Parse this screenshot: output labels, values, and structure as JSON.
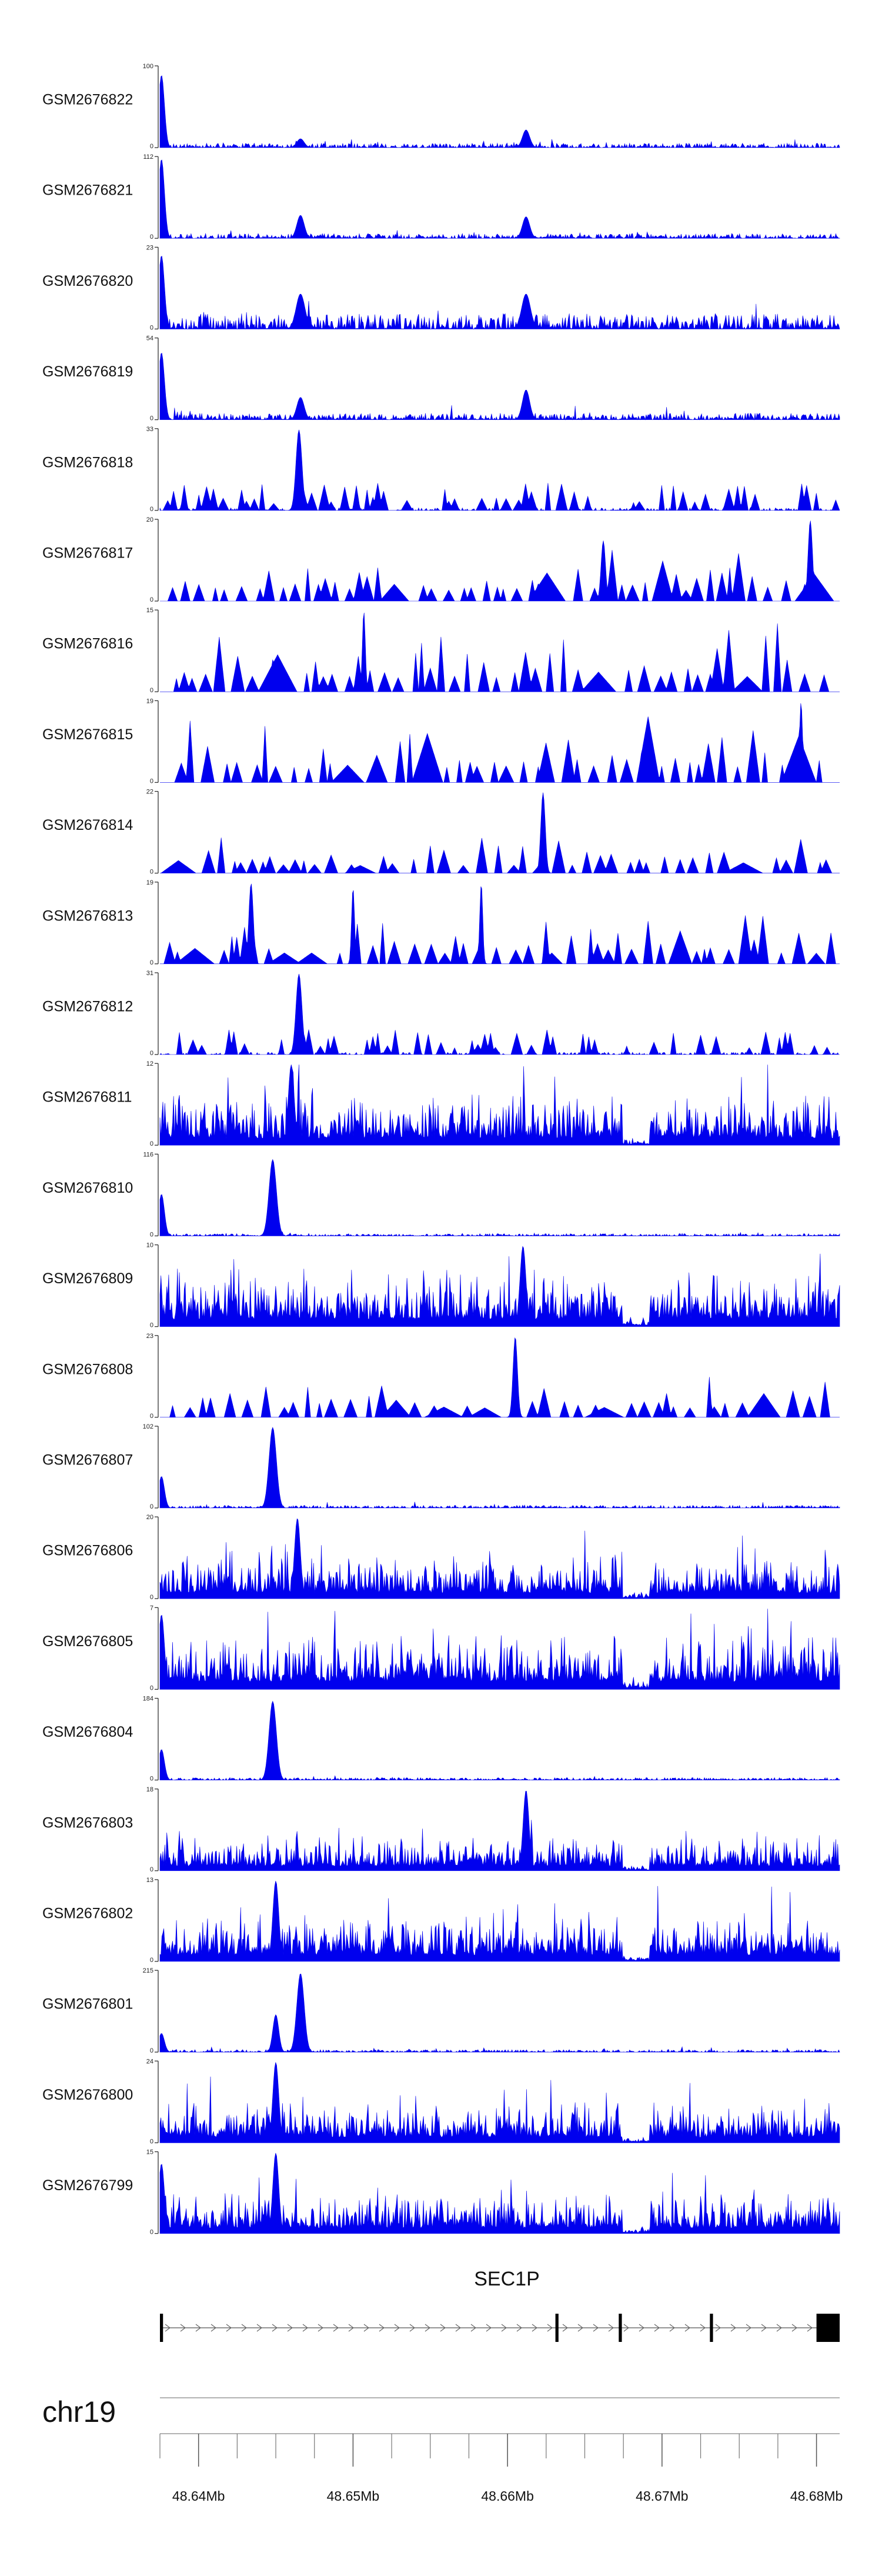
{
  "chart_data": {
    "type": "area",
    "title": "",
    "chromosome": "chr19",
    "xlim": [
      48.6375,
      48.6815
    ],
    "x_ticks": [
      "48.64Mb",
      "48.65Mb",
      "48.66Mb",
      "48.67Mb",
      "48.68Mb"
    ],
    "x_tick_values": [
      48.64,
      48.65,
      48.66,
      48.67,
      48.68
    ],
    "gene": {
      "name": "SEC1P",
      "start": 48.6375,
      "end": 48.6815,
      "strand": "+",
      "exons": [
        [
          48.6375,
          48.6377
        ],
        [
          48.6631,
          48.6633
        ],
        [
          48.6672,
          48.6674
        ],
        [
          48.6731,
          48.6733
        ],
        [
          48.68,
          48.6815
        ]
      ]
    },
    "tracks": [
      {
        "name": "GSM2676822",
        "ymin": "0",
        "ymax": "100",
        "max": 100,
        "style": "dense",
        "base": 2.5,
        "peaks": [
          [
            48.6376,
            90,
            0.0004
          ],
          [
            48.6466,
            11,
            0.0005
          ],
          [
            48.6612,
            22,
            0.0005
          ]
        ]
      },
      {
        "name": "GSM2676821",
        "ymin": "0",
        "ymax": "112",
        "max": 112,
        "style": "dense",
        "base": 3,
        "peaks": [
          [
            48.6376,
            110,
            0.0004
          ],
          [
            48.6466,
            32,
            0.0005
          ],
          [
            48.6612,
            30,
            0.0005
          ]
        ]
      },
      {
        "name": "GSM2676820",
        "ymin": "0",
        "ymax": "23",
        "max": 23,
        "style": "dense",
        "base": 2,
        "peaks": [
          [
            48.6376,
            21,
            0.0004
          ],
          [
            48.6466,
            10,
            0.0006
          ],
          [
            48.6612,
            10,
            0.0006
          ]
        ]
      },
      {
        "name": "GSM2676819",
        "ymin": "0",
        "ymax": "54",
        "max": 54,
        "style": "dense",
        "base": 2,
        "peaks": [
          [
            48.6376,
            45,
            0.0004
          ],
          [
            48.6466,
            15,
            0.0005
          ],
          [
            48.6612,
            20,
            0.0005
          ]
        ]
      },
      {
        "name": "GSM2676818",
        "ymin": "0",
        "ymax": "33",
        "max": 33,
        "style": "spiky",
        "base": 7,
        "peaks": [
          [
            48.6465,
            33,
            0.0004
          ]
        ]
      },
      {
        "name": "GSM2676817",
        "ymin": "0",
        "ymax": "20",
        "max": 20,
        "style": "sparse",
        "base": 9,
        "peaks": [
          [
            48.6662,
            15,
            0.0003
          ],
          [
            48.6796,
            20,
            0.0003
          ]
        ]
      },
      {
        "name": "GSM2676816",
        "ymin": "0",
        "ymax": "15",
        "max": 15,
        "style": "sparse",
        "base": 8,
        "peaks": [
          [
            48.6507,
            15,
            0.0002
          ]
        ]
      },
      {
        "name": "GSM2676815",
        "ymin": "0",
        "ymax": "19",
        "max": 19,
        "style": "sparse",
        "base": 11,
        "peaks": [
          [
            48.679,
            19,
            0.0002
          ]
        ]
      },
      {
        "name": "GSM2676814",
        "ymin": "0",
        "ymax": "22",
        "max": 22,
        "style": "sparse",
        "base": 7,
        "peaks": [
          [
            48.6623,
            22,
            0.0003
          ]
        ]
      },
      {
        "name": "GSM2676813",
        "ymin": "0",
        "ymax": "19",
        "max": 19,
        "style": "sparse",
        "base": 8,
        "peaks": [
          [
            48.6434,
            19,
            0.0003
          ],
          [
            48.65,
            18,
            0.0002
          ],
          [
            48.6583,
            19,
            0.0002
          ]
        ]
      },
      {
        "name": "GSM2676812",
        "ymin": "0",
        "ymax": "31",
        "max": 31,
        "style": "spiky",
        "base": 6,
        "peaks": [
          [
            48.6465,
            31,
            0.0004
          ]
        ]
      },
      {
        "name": "GSM2676811",
        "ymin": "0",
        "ymax": "12",
        "max": 12,
        "style": "noisy",
        "base": 5,
        "peaks": [
          [
            48.646,
            12,
            0.0004
          ]
        ]
      },
      {
        "name": "GSM2676810",
        "ymin": "0",
        "ymax": "116",
        "max": 116,
        "style": "dense",
        "base": 1.5,
        "peaks": [
          [
            48.6376,
            60,
            0.0004
          ],
          [
            48.6448,
            110,
            0.0005
          ]
        ]
      },
      {
        "name": "GSM2676809",
        "ymin": "0",
        "ymax": "10",
        "max": 10,
        "style": "noisy",
        "base": 4.5,
        "peaks": [
          [
            48.661,
            10,
            0.0004
          ]
        ]
      },
      {
        "name": "GSM2676808",
        "ymin": "0",
        "ymax": "23",
        "max": 23,
        "style": "sparse",
        "base": 9,
        "peaks": [
          [
            48.6605,
            23,
            0.0003
          ]
        ]
      },
      {
        "name": "GSM2676807",
        "ymin": "0",
        "ymax": "102",
        "max": 102,
        "style": "dense",
        "base": 1.5,
        "peaks": [
          [
            48.6376,
            40,
            0.0004
          ],
          [
            48.6448,
            102,
            0.0005
          ]
        ]
      },
      {
        "name": "GSM2676806",
        "ymin": "0",
        "ymax": "20",
        "max": 20,
        "style": "noisy",
        "base": 7,
        "peaks": [
          [
            48.6464,
            20,
            0.0004
          ]
        ]
      },
      {
        "name": "GSM2676805",
        "ymin": "0",
        "ymax": "7",
        "max": 7,
        "style": "noisy",
        "base": 3.3,
        "peaks": [
          [
            48.6376,
            6.5,
            0.0004
          ]
        ]
      },
      {
        "name": "GSM2676804",
        "ymin": "0",
        "ymax": "184",
        "max": 184,
        "style": "dense",
        "base": 2.5,
        "peaks": [
          [
            48.6376,
            70,
            0.0004
          ],
          [
            48.6448,
            180,
            0.0005
          ]
        ]
      },
      {
        "name": "GSM2676803",
        "ymin": "0",
        "ymax": "18",
        "max": 18,
        "style": "noisy",
        "base": 5,
        "peaks": [
          [
            48.6612,
            18,
            0.0004
          ]
        ]
      },
      {
        "name": "GSM2676802",
        "ymin": "0",
        "ymax": "13",
        "max": 13,
        "style": "noisy",
        "base": 5,
        "peaks": [
          [
            48.645,
            13,
            0.0004
          ]
        ]
      },
      {
        "name": "GSM2676801",
        "ymin": "0",
        "ymax": "215",
        "max": 215,
        "style": "dense",
        "base": 3,
        "peaks": [
          [
            48.6376,
            50,
            0.0004
          ],
          [
            48.645,
            100,
            0.0004
          ],
          [
            48.6466,
            210,
            0.0005
          ]
        ]
      },
      {
        "name": "GSM2676800",
        "ymin": "0",
        "ymax": "24",
        "max": 24,
        "style": "noisy",
        "base": 8,
        "peaks": [
          [
            48.645,
            24,
            0.0004
          ]
        ]
      },
      {
        "name": "GSM2676799",
        "ymin": "0",
        "ymax": "15",
        "max": 15,
        "style": "noisy",
        "base": 5,
        "peaks": [
          [
            48.645,
            15,
            0.0004
          ],
          [
            48.6376,
            13,
            0.0004
          ]
        ]
      }
    ]
  },
  "colors": {
    "signal": "#0000ee",
    "axis": "#333333",
    "gene": "#000000",
    "chrom_line": "#999999"
  }
}
